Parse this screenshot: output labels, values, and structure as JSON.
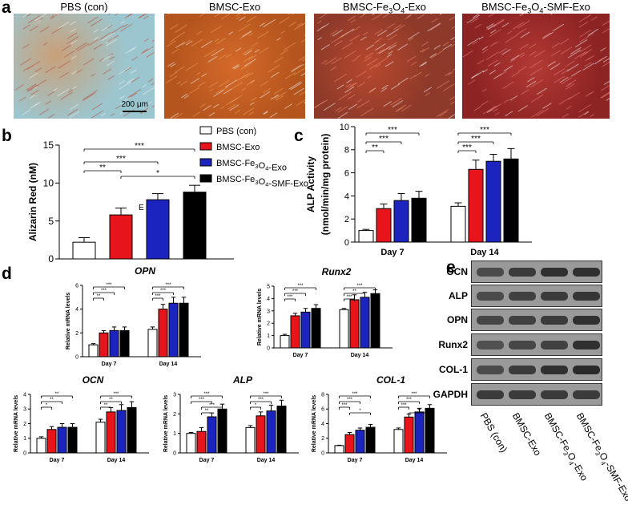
{
  "panel_labels": {
    "a": "a",
    "b": "b",
    "c": "c",
    "d": "d",
    "e": "e"
  },
  "micrographs": {
    "titles": [
      "PBS (con)",
      "BMSC-Exo",
      "BMSC-Fe3O4-Exo",
      "BMSC-Fe3O4-SMF-Exo"
    ],
    "scale_bar": "200 μm"
  },
  "legend": [
    "PBS (con)",
    "BMSC-Exo",
    "BMSC-Fe3O4-Exo",
    "BMSC-Fe3O4-SMF-Exo"
  ],
  "colors": {
    "pbs": "#ffffff",
    "exo": "#e8141b",
    "fe": "#1c24c0",
    "smf": "#000000"
  },
  "chart_data": [
    {
      "id": "b",
      "type": "bar",
      "ylabel": "Alizarin Red (nM)",
      "ylim": [
        0,
        15
      ],
      "yticks": [
        0,
        5,
        10,
        15
      ],
      "categories": [
        "PBS (con)",
        "BMSC-Exo",
        "BMSC-Fe3O4-Exo",
        "BMSC-Fe3O4-SMF-Exo"
      ],
      "values": [
        2.2,
        5.8,
        7.8,
        8.8
      ],
      "errors": [
        0.6,
        0.9,
        0.8,
        0.9
      ],
      "annotation": "E",
      "significance": [
        {
          "from": 0,
          "to": 3,
          "label": "***"
        },
        {
          "from": 0,
          "to": 2,
          "label": "***"
        },
        {
          "from": 0,
          "to": 1,
          "label": "**"
        },
        {
          "from": 1,
          "to": 3,
          "label": "*"
        }
      ]
    },
    {
      "id": "c",
      "type": "bar",
      "ylabel": "ALP Activity (nmol/min/mg protein)",
      "ylim": [
        0,
        10
      ],
      "yticks": [
        0,
        2,
        4,
        6,
        8,
        10
      ],
      "groups": [
        "Day 7",
        "Day 14"
      ],
      "series": [
        {
          "name": "PBS (con)",
          "values": [
            1.0,
            3.1
          ],
          "errors": [
            0.1,
            0.3
          ]
        },
        {
          "name": "BMSC-Exo",
          "values": [
            2.9,
            6.3
          ],
          "errors": [
            0.4,
            0.8
          ]
        },
        {
          "name": "BMSC-Fe3O4-Exo",
          "values": [
            3.6,
            7.0
          ],
          "errors": [
            0.6,
            0.6
          ]
        },
        {
          "name": "BMSC-Fe3O4-SMF-Exo",
          "values": [
            3.8,
            7.2
          ],
          "errors": [
            0.6,
            0.9
          ]
        }
      ],
      "significance": [
        {
          "group": 0,
          "from": 0,
          "to": 3,
          "label": "***"
        },
        {
          "group": 0,
          "from": 0,
          "to": 2,
          "label": "***"
        },
        {
          "group": 0,
          "from": 0,
          "to": 1,
          "label": "**"
        },
        {
          "group": 1,
          "from": 0,
          "to": 3,
          "label": "***"
        },
        {
          "group": 1,
          "from": 0,
          "to": 2,
          "label": "***"
        },
        {
          "group": 1,
          "from": 0,
          "to": 1,
          "label": "***"
        }
      ]
    },
    {
      "id": "opn",
      "type": "bar",
      "title": "OPN",
      "ylabel": "Relative mRNA levels",
      "ylim": [
        0,
        6
      ],
      "yticks": [
        0,
        2,
        4,
        6
      ],
      "groups": [
        "Day 7",
        "Day 14"
      ],
      "series": [
        {
          "name": "PBS (con)",
          "values": [
            1.0,
            2.3
          ],
          "errors": [
            0.1,
            0.2
          ]
        },
        {
          "name": "BMSC-Exo",
          "values": [
            2.0,
            4.0
          ],
          "errors": [
            0.2,
            0.4
          ]
        },
        {
          "name": "BMSC-Fe3O4-Exo",
          "values": [
            2.2,
            4.5
          ],
          "errors": [
            0.3,
            0.5
          ]
        },
        {
          "name": "BMSC-Fe3O4-SMF-Exo",
          "values": [
            2.2,
            4.5
          ],
          "errors": [
            0.3,
            0.5
          ]
        }
      ],
      "significance": [
        {
          "group": 0,
          "from": 0,
          "to": 3,
          "label": "***"
        },
        {
          "group": 0,
          "from": 0,
          "to": 2,
          "label": "***"
        },
        {
          "group": 0,
          "from": 0,
          "to": 1,
          "label": "**"
        },
        {
          "group": 1,
          "from": 0,
          "to": 3,
          "label": "***"
        },
        {
          "group": 1,
          "from": 0,
          "to": 2,
          "label": "***"
        },
        {
          "group": 1,
          "from": 0,
          "to": 1,
          "label": "***"
        }
      ]
    },
    {
      "id": "runx2",
      "type": "bar",
      "title": "Runx2",
      "ylabel": "Relative mRNA levels",
      "ylim": [
        0,
        5
      ],
      "yticks": [
        0,
        1,
        2,
        3,
        4,
        5
      ],
      "groups": [
        "Day 7",
        "Day 14"
      ],
      "series": [
        {
          "name": "PBS (con)",
          "values": [
            1.0,
            3.1
          ],
          "errors": [
            0.1,
            0.1
          ]
        },
        {
          "name": "BMSC-Exo",
          "values": [
            2.6,
            3.9
          ],
          "errors": [
            0.2,
            0.4
          ]
        },
        {
          "name": "BMSC-Fe3O4-Exo",
          "values": [
            2.9,
            4.1
          ],
          "errors": [
            0.3,
            0.4
          ]
        },
        {
          "name": "BMSC-Fe3O4-SMF-Exo",
          "values": [
            3.2,
            4.4
          ],
          "errors": [
            0.3,
            0.3
          ]
        }
      ],
      "significance": [
        {
          "group": 0,
          "from": 0,
          "to": 3,
          "label": "***"
        },
        {
          "group": 0,
          "from": 0,
          "to": 2,
          "label": "***"
        },
        {
          "group": 0,
          "from": 0,
          "to": 1,
          "label": "***"
        },
        {
          "group": 1,
          "from": 0,
          "to": 3,
          "label": "***"
        },
        {
          "group": 1,
          "from": 0,
          "to": 2,
          "label": "**"
        },
        {
          "group": 1,
          "from": 0,
          "to": 1,
          "label": "***"
        }
      ]
    },
    {
      "id": "ocn",
      "type": "bar",
      "title": "OCN",
      "ylabel": "Relative mRNA levels",
      "ylim": [
        0,
        4
      ],
      "yticks": [
        0,
        1,
        2,
        3,
        4
      ],
      "groups": [
        "Day 7",
        "Day 14"
      ],
      "series": [
        {
          "name": "PBS (con)",
          "values": [
            1.0,
            2.1
          ],
          "errors": [
            0.1,
            0.2
          ]
        },
        {
          "name": "BMSC-Exo",
          "values": [
            1.6,
            2.8
          ],
          "errors": [
            0.2,
            0.3
          ]
        },
        {
          "name": "BMSC-Fe3O4-Exo",
          "values": [
            1.75,
            2.9
          ],
          "errors": [
            0.25,
            0.4
          ]
        },
        {
          "name": "BMSC-Fe3O4-SMF-Exo",
          "values": [
            1.75,
            3.1
          ],
          "errors": [
            0.25,
            0.4
          ]
        }
      ],
      "significance": [
        {
          "group": 0,
          "from": 0,
          "to": 3,
          "label": "**"
        },
        {
          "group": 0,
          "from": 0,
          "to": 2,
          "label": "**"
        },
        {
          "group": 0,
          "from": 0,
          "to": 1,
          "label": "*"
        },
        {
          "group": 1,
          "from": 0,
          "to": 3,
          "label": "***"
        },
        {
          "group": 1,
          "from": 0,
          "to": 2,
          "label": "**"
        },
        {
          "group": 1,
          "from": 0,
          "to": 1,
          "label": "**"
        }
      ]
    },
    {
      "id": "alp",
      "type": "bar",
      "title": "ALP",
      "ylabel": "Relative mRNA levels",
      "ylim": [
        0,
        3
      ],
      "yticks": [
        0,
        1,
        2,
        3
      ],
      "groups": [
        "Day 7",
        "Day 14"
      ],
      "series": [
        {
          "name": "PBS (con)",
          "values": [
            1.0,
            1.3
          ],
          "errors": [
            0.05,
            0.1
          ]
        },
        {
          "name": "BMSC-Exo",
          "values": [
            1.1,
            1.9
          ],
          "errors": [
            0.2,
            0.2
          ]
        },
        {
          "name": "BMSC-Fe3O4-Exo",
          "values": [
            1.85,
            2.15
          ],
          "errors": [
            0.2,
            0.3
          ]
        },
        {
          "name": "BMSC-Fe3O4-SMF-Exo",
          "values": [
            2.25,
            2.4
          ],
          "errors": [
            0.25,
            0.3
          ]
        }
      ],
      "significance": [
        {
          "group": 0,
          "from": 0,
          "to": 3,
          "label": "***"
        },
        {
          "group": 0,
          "from": 0,
          "to": 2,
          "label": "***"
        },
        {
          "group": 0,
          "from": 1,
          "to": 3,
          "label": "***"
        },
        {
          "group": 0,
          "from": 1,
          "to": 2,
          "label": "**"
        },
        {
          "group": 1,
          "from": 0,
          "to": 3,
          "label": "***"
        },
        {
          "group": 1,
          "from": 0,
          "to": 2,
          "label": "***"
        },
        {
          "group": 1,
          "from": 0,
          "to": 1,
          "label": "*"
        }
      ]
    },
    {
      "id": "col1",
      "type": "bar",
      "title": "COL-1",
      "ylabel": "Relative mRNA levels",
      "ylim": [
        0,
        8
      ],
      "yticks": [
        0,
        2,
        4,
        6,
        8
      ],
      "groups": [
        "Day 7",
        "Day 14"
      ],
      "series": [
        {
          "name": "PBS (con)",
          "values": [
            1.0,
            3.2
          ],
          "errors": [
            0.05,
            0.2
          ]
        },
        {
          "name": "BMSC-Exo",
          "values": [
            2.5,
            4.9
          ],
          "errors": [
            0.3,
            0.4
          ]
        },
        {
          "name": "BMSC-Fe3O4-Exo",
          "values": [
            3.1,
            5.6
          ],
          "errors": [
            0.3,
            0.5
          ]
        },
        {
          "name": "BMSC-Fe3O4-SMF-Exo",
          "values": [
            3.5,
            6.1
          ],
          "errors": [
            0.4,
            0.5
          ]
        }
      ],
      "significance": [
        {
          "group": 0,
          "from": 0,
          "to": 3,
          "label": "***"
        },
        {
          "group": 0,
          "from": 0,
          "to": 2,
          "label": "***"
        },
        {
          "group": 0,
          "from": 0,
          "to": 1,
          "label": "***"
        },
        {
          "group": 0,
          "from": 1,
          "to": 3,
          "label": "*"
        },
        {
          "group": 1,
          "from": 0,
          "to": 3,
          "label": "***"
        },
        {
          "group": 1,
          "from": 0,
          "to": 2,
          "label": "***"
        },
        {
          "group": 1,
          "from": 0,
          "to": 1,
          "label": "***"
        },
        {
          "group": 1,
          "from": 1,
          "to": 3,
          "label": "**"
        }
      ]
    }
  ],
  "western_blot": {
    "rows": [
      "OCN",
      "ALP",
      "OPN",
      "Runx2",
      "COL-1",
      "GAPDH"
    ],
    "lanes": [
      "PBS (con)",
      "BMSC-Exo",
      "BMSC-Fe3O4-Exo",
      "BMSC-Fe3O4-SMF-Exo"
    ],
    "relative_intensity": [
      [
        0.7,
        0.85,
        0.95,
        0.95
      ],
      [
        0.7,
        0.8,
        0.85,
        0.9
      ],
      [
        0.75,
        0.8,
        0.85,
        0.95
      ],
      [
        0.65,
        0.75,
        0.8,
        0.95
      ],
      [
        0.7,
        0.85,
        0.95,
        1.0
      ],
      [
        0.85,
        0.85,
        0.85,
        0.85
      ]
    ]
  }
}
